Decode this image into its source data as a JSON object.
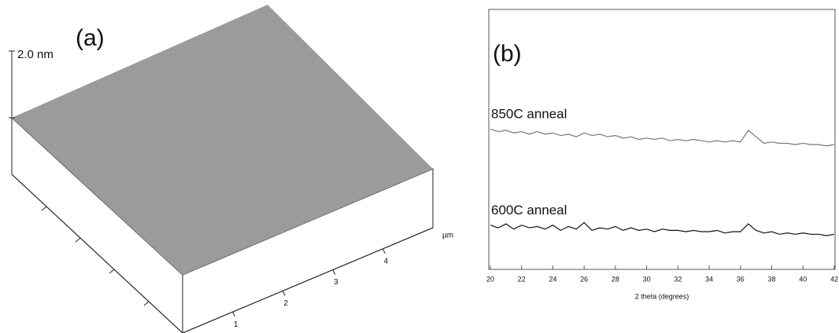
{
  "panel_a": {
    "label": "(a)",
    "z_label": "2.0 nm",
    "axis_labels": [
      "1",
      "2",
      "3",
      "4"
    ],
    "axis_unit": "µm"
  },
  "chart_data": {
    "type": "line",
    "panel_label": "(b)",
    "xlabel": "2 theta (degrees)",
    "x": [
      20,
      20.5,
      21,
      21.5,
      22,
      22.5,
      23,
      23.5,
      24,
      24.5,
      25,
      25.5,
      26,
      26.5,
      27,
      27.5,
      28,
      28.5,
      29,
      29.5,
      30,
      30.5,
      31,
      31.5,
      32,
      32.5,
      33,
      33.5,
      34,
      34.5,
      35,
      35.5,
      36,
      36.5,
      37,
      37.5,
      38,
      38.5,
      39,
      39.5,
      40,
      40.5,
      41,
      41.5,
      42
    ],
    "series": [
      {
        "name": "850C anneal",
        "color": "#777777",
        "values": [
          5.4,
          5.3,
          5.35,
          5.25,
          5.3,
          5.2,
          5.3,
          5.2,
          5.25,
          5.15,
          5.2,
          5.1,
          5.25,
          5.15,
          5.2,
          5.1,
          5.15,
          5.05,
          5.1,
          5.0,
          5.05,
          5.0,
          5.05,
          4.95,
          5.0,
          4.95,
          5.0,
          4.95,
          4.9,
          4.95,
          4.9,
          4.95,
          4.9,
          5.35,
          5.1,
          4.85,
          4.9,
          4.85,
          4.85,
          4.8,
          4.85,
          4.8,
          4.8,
          4.75,
          4.8
        ]
      },
      {
        "name": "600C anneal",
        "color": "#111111",
        "values": [
          1.7,
          1.6,
          1.75,
          1.55,
          1.7,
          1.6,
          1.65,
          1.55,
          1.7,
          1.5,
          1.65,
          1.55,
          1.8,
          1.5,
          1.6,
          1.55,
          1.65,
          1.5,
          1.6,
          1.5,
          1.55,
          1.45,
          1.55,
          1.5,
          1.5,
          1.45,
          1.5,
          1.45,
          1.45,
          1.5,
          1.4,
          1.45,
          1.45,
          1.75,
          1.5,
          1.4,
          1.45,
          1.35,
          1.4,
          1.35,
          1.4,
          1.35,
          1.35,
          1.3,
          1.35
        ]
      }
    ],
    "xlim": [
      20,
      42
    ],
    "xticks": [
      20,
      22,
      24,
      26,
      28,
      30,
      32,
      34,
      36,
      38,
      40,
      42
    ],
    "ylim": [
      0,
      10
    ]
  }
}
